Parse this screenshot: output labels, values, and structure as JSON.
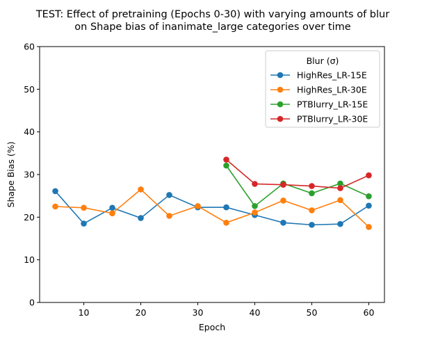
{
  "chart_data": {
    "type": "line",
    "title_line1": "TEST: Effect of pretraining (Epochs 0-30) with varying amounts of blur",
    "title_line2": "on Shape bias of inanimate_large categories over time",
    "xlabel": "Epoch",
    "ylabel": "Shape Bias (%)",
    "xlim": [
      2.25,
      62.75
    ],
    "ylim": [
      0,
      60
    ],
    "xticks": [
      10,
      20,
      30,
      40,
      50,
      60
    ],
    "yticks": [
      0,
      10,
      20,
      30,
      40,
      50,
      60
    ],
    "legend_title": "Blur (σ)",
    "legend_position": "top-right",
    "grid": false,
    "series": [
      {
        "name": "HighRes_LR-15E",
        "color": "#1f77b4",
        "x": [
          5,
          10,
          15,
          20,
          25,
          30,
          35,
          40,
          45,
          50,
          55,
          60
        ],
        "y": [
          26.1,
          18.5,
          22.2,
          19.8,
          25.2,
          22.3,
          22.3,
          20.5,
          18.7,
          18.2,
          18.4,
          22.7
        ]
      },
      {
        "name": "HighRes_LR-30E",
        "color": "#ff7f0e",
        "x": [
          5,
          10,
          15,
          20,
          25,
          30,
          35,
          40,
          45,
          50,
          55,
          60
        ],
        "y": [
          22.5,
          22.2,
          20.9,
          26.5,
          20.3,
          22.6,
          18.7,
          21.1,
          23.9,
          21.6,
          24.0,
          17.7
        ]
      },
      {
        "name": "PTBlurry_LR-15E",
        "color": "#2ca02c",
        "x": [
          35,
          40,
          45,
          50,
          55,
          60
        ],
        "y": [
          32.1,
          22.6,
          27.9,
          25.6,
          27.9,
          24.9
        ]
      },
      {
        "name": "PTBlurry_LR-30E",
        "color": "#d62728",
        "x": [
          35,
          40,
          45,
          50,
          55,
          60
        ],
        "y": [
          33.5,
          27.8,
          27.6,
          27.3,
          26.8,
          29.8
        ]
      }
    ]
  }
}
